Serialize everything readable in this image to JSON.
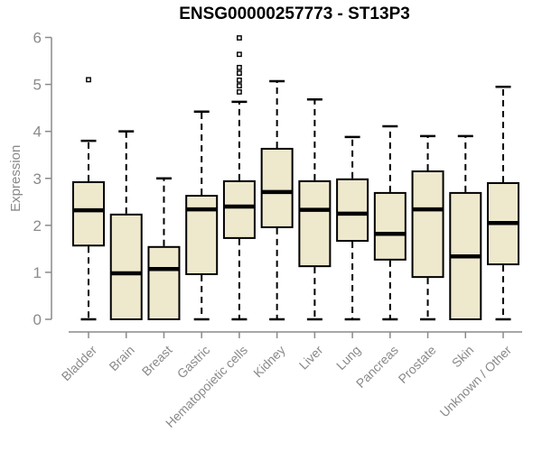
{
  "chart_data": {
    "type": "boxplot",
    "title": "ENSG00000257773 - ST13P3",
    "ylabel": "Expression",
    "xlabel": "",
    "ylim": [
      0,
      6
    ],
    "yticks": [
      0,
      1,
      2,
      3,
      4,
      5,
      6
    ],
    "grid": false,
    "legend": "none",
    "categories": [
      "Bladder",
      "Brain",
      "Breast",
      "Gastric",
      "Hematopoietic cells",
      "Kidney",
      "Liver",
      "Lung",
      "Pancreas",
      "Prostate",
      "Skin",
      "Unknown / Other"
    ],
    "boxes": [
      {
        "category": "Bladder",
        "min": 0,
        "q1": 1.57,
        "median": 2.32,
        "q3": 2.92,
        "max": 3.8,
        "outliers": [
          5.1
        ]
      },
      {
        "category": "Brain",
        "min": 0,
        "q1": 0,
        "median": 0.98,
        "q3": 2.23,
        "max": 4.0,
        "outliers": []
      },
      {
        "category": "Breast",
        "min": 0,
        "q1": 0,
        "median": 1.07,
        "q3": 1.54,
        "max": 3.0,
        "outliers": []
      },
      {
        "category": "Gastric",
        "min": 0,
        "q1": 0.96,
        "median": 2.34,
        "q3": 2.63,
        "max": 4.42,
        "outliers": []
      },
      {
        "category": "Hematopoietic cells",
        "min": 0,
        "q1": 1.73,
        "median": 2.4,
        "q3": 2.94,
        "max": 4.63,
        "outliers": [
          5.99,
          5.64,
          5.36,
          5.24,
          5.09,
          4.97,
          4.84
        ]
      },
      {
        "category": "Kidney",
        "min": 0,
        "q1": 1.96,
        "median": 2.71,
        "q3": 3.63,
        "max": 5.07,
        "outliers": []
      },
      {
        "category": "Liver",
        "min": 0,
        "q1": 1.13,
        "median": 2.33,
        "q3": 2.94,
        "max": 4.68,
        "outliers": []
      },
      {
        "category": "Lung",
        "min": 0,
        "q1": 1.67,
        "median": 2.25,
        "q3": 2.98,
        "max": 3.88,
        "outliers": []
      },
      {
        "category": "Pancreas",
        "min": 0,
        "q1": 1.27,
        "median": 1.82,
        "q3": 2.69,
        "max": 4.11,
        "outliers": []
      },
      {
        "category": "Prostate",
        "min": 0,
        "q1": 0.9,
        "median": 2.34,
        "q3": 3.15,
        "max": 3.9,
        "outliers": []
      },
      {
        "category": "Skin",
        "min": 0,
        "q1": 0,
        "median": 1.34,
        "q3": 2.69,
        "max": 3.9,
        "outliers": []
      },
      {
        "category": "Unknown / Other",
        "min": 0,
        "q1": 1.17,
        "median": 2.05,
        "q3": 2.9,
        "max": 4.95,
        "outliers": []
      }
    ],
    "colors": {
      "box_fill": "#EEE8CD",
      "box_stroke": "#000000",
      "median": "#000000",
      "whisker": "#000000",
      "outlier_stroke": "#000000",
      "outlier_fill": "#FFFFFF",
      "axis": "#8A8A8A",
      "tick_labels": "#8A8A8A",
      "title": "#000000",
      "background": "#FFFFFF"
    }
  }
}
